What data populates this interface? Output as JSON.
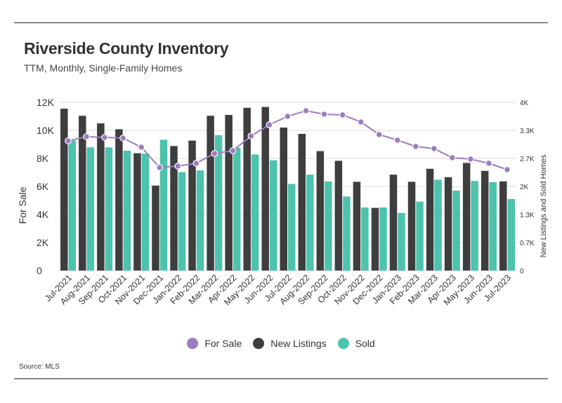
{
  "header": {
    "title": "Riverside County Inventory",
    "subtitle": "TTM, Monthly, Single-Family Homes",
    "source": "Source:  MLS"
  },
  "colors": {
    "for_sale": "#9c7cc1",
    "new_listings": "#3e3e3e",
    "sold": "#4cc3ac",
    "grid": "#d9d9d9"
  },
  "chart_data": {
    "type": "bar",
    "categories": [
      "Jul-2021",
      "Aug-2021",
      "Sep-2021",
      "Oct-2021",
      "Nov-2021",
      "Dec-2021",
      "Jan-2022",
      "Feb-2022",
      "Mar-2022",
      "Apr-2022",
      "May-2022",
      "Jun-2022",
      "Jul-2022",
      "Aug-2022",
      "Sep-2022",
      "Oct-2022",
      "Nov-2022",
      "Dec-2022",
      "Jan-2023",
      "Feb-2023",
      "Mar-2023",
      "Apr-2023",
      "May-2023",
      "Jun-2023",
      "Jul-2023"
    ],
    "ylabel": "For Sale",
    "y2label": "New Listings and Sold Homes",
    "ylim": [
      0,
      12000
    ],
    "y2lim": [
      0,
      4000
    ],
    "yticks": [
      "0",
      "2K",
      "4K",
      "6K",
      "8K",
      "10K",
      "12K"
    ],
    "y2ticks": [
      "0",
      "0.7K",
      "1.3K",
      "2K",
      "2.7K",
      "3.3K",
      "4K"
    ],
    "series": [
      {
        "name": "For Sale",
        "axis": "left",
        "style": "line",
        "values": [
          9250,
          9550,
          9500,
          9450,
          8800,
          7350,
          7450,
          7650,
          8350,
          8550,
          9600,
          10400,
          11000,
          11400,
          11150,
          11100,
          10600,
          9700,
          9300,
          8850,
          8700,
          8050,
          7950,
          7650,
          7200
        ]
      },
      {
        "name": "New Listings",
        "axis": "right",
        "style": "bar",
        "values": [
          3850,
          3680,
          3500,
          3360,
          2790,
          2020,
          2960,
          3090,
          3680,
          3700,
          3870,
          3890,
          3400,
          3250,
          2840,
          2610,
          2110,
          1490,
          2280,
          2110,
          2420,
          2220,
          2560,
          2370,
          2120
        ]
      },
      {
        "name": "Sold",
        "axis": "right",
        "style": "bar",
        "values": [
          3090,
          2930,
          2930,
          2850,
          2780,
          3110,
          2340,
          2380,
          3220,
          2920,
          2760,
          2620,
          2060,
          2280,
          2120,
          1760,
          1500,
          1500,
          1370,
          1640,
          2160,
          1900,
          2130,
          2100,
          1700
        ]
      }
    ],
    "legend": "bottom",
    "grid": "horizontal"
  }
}
